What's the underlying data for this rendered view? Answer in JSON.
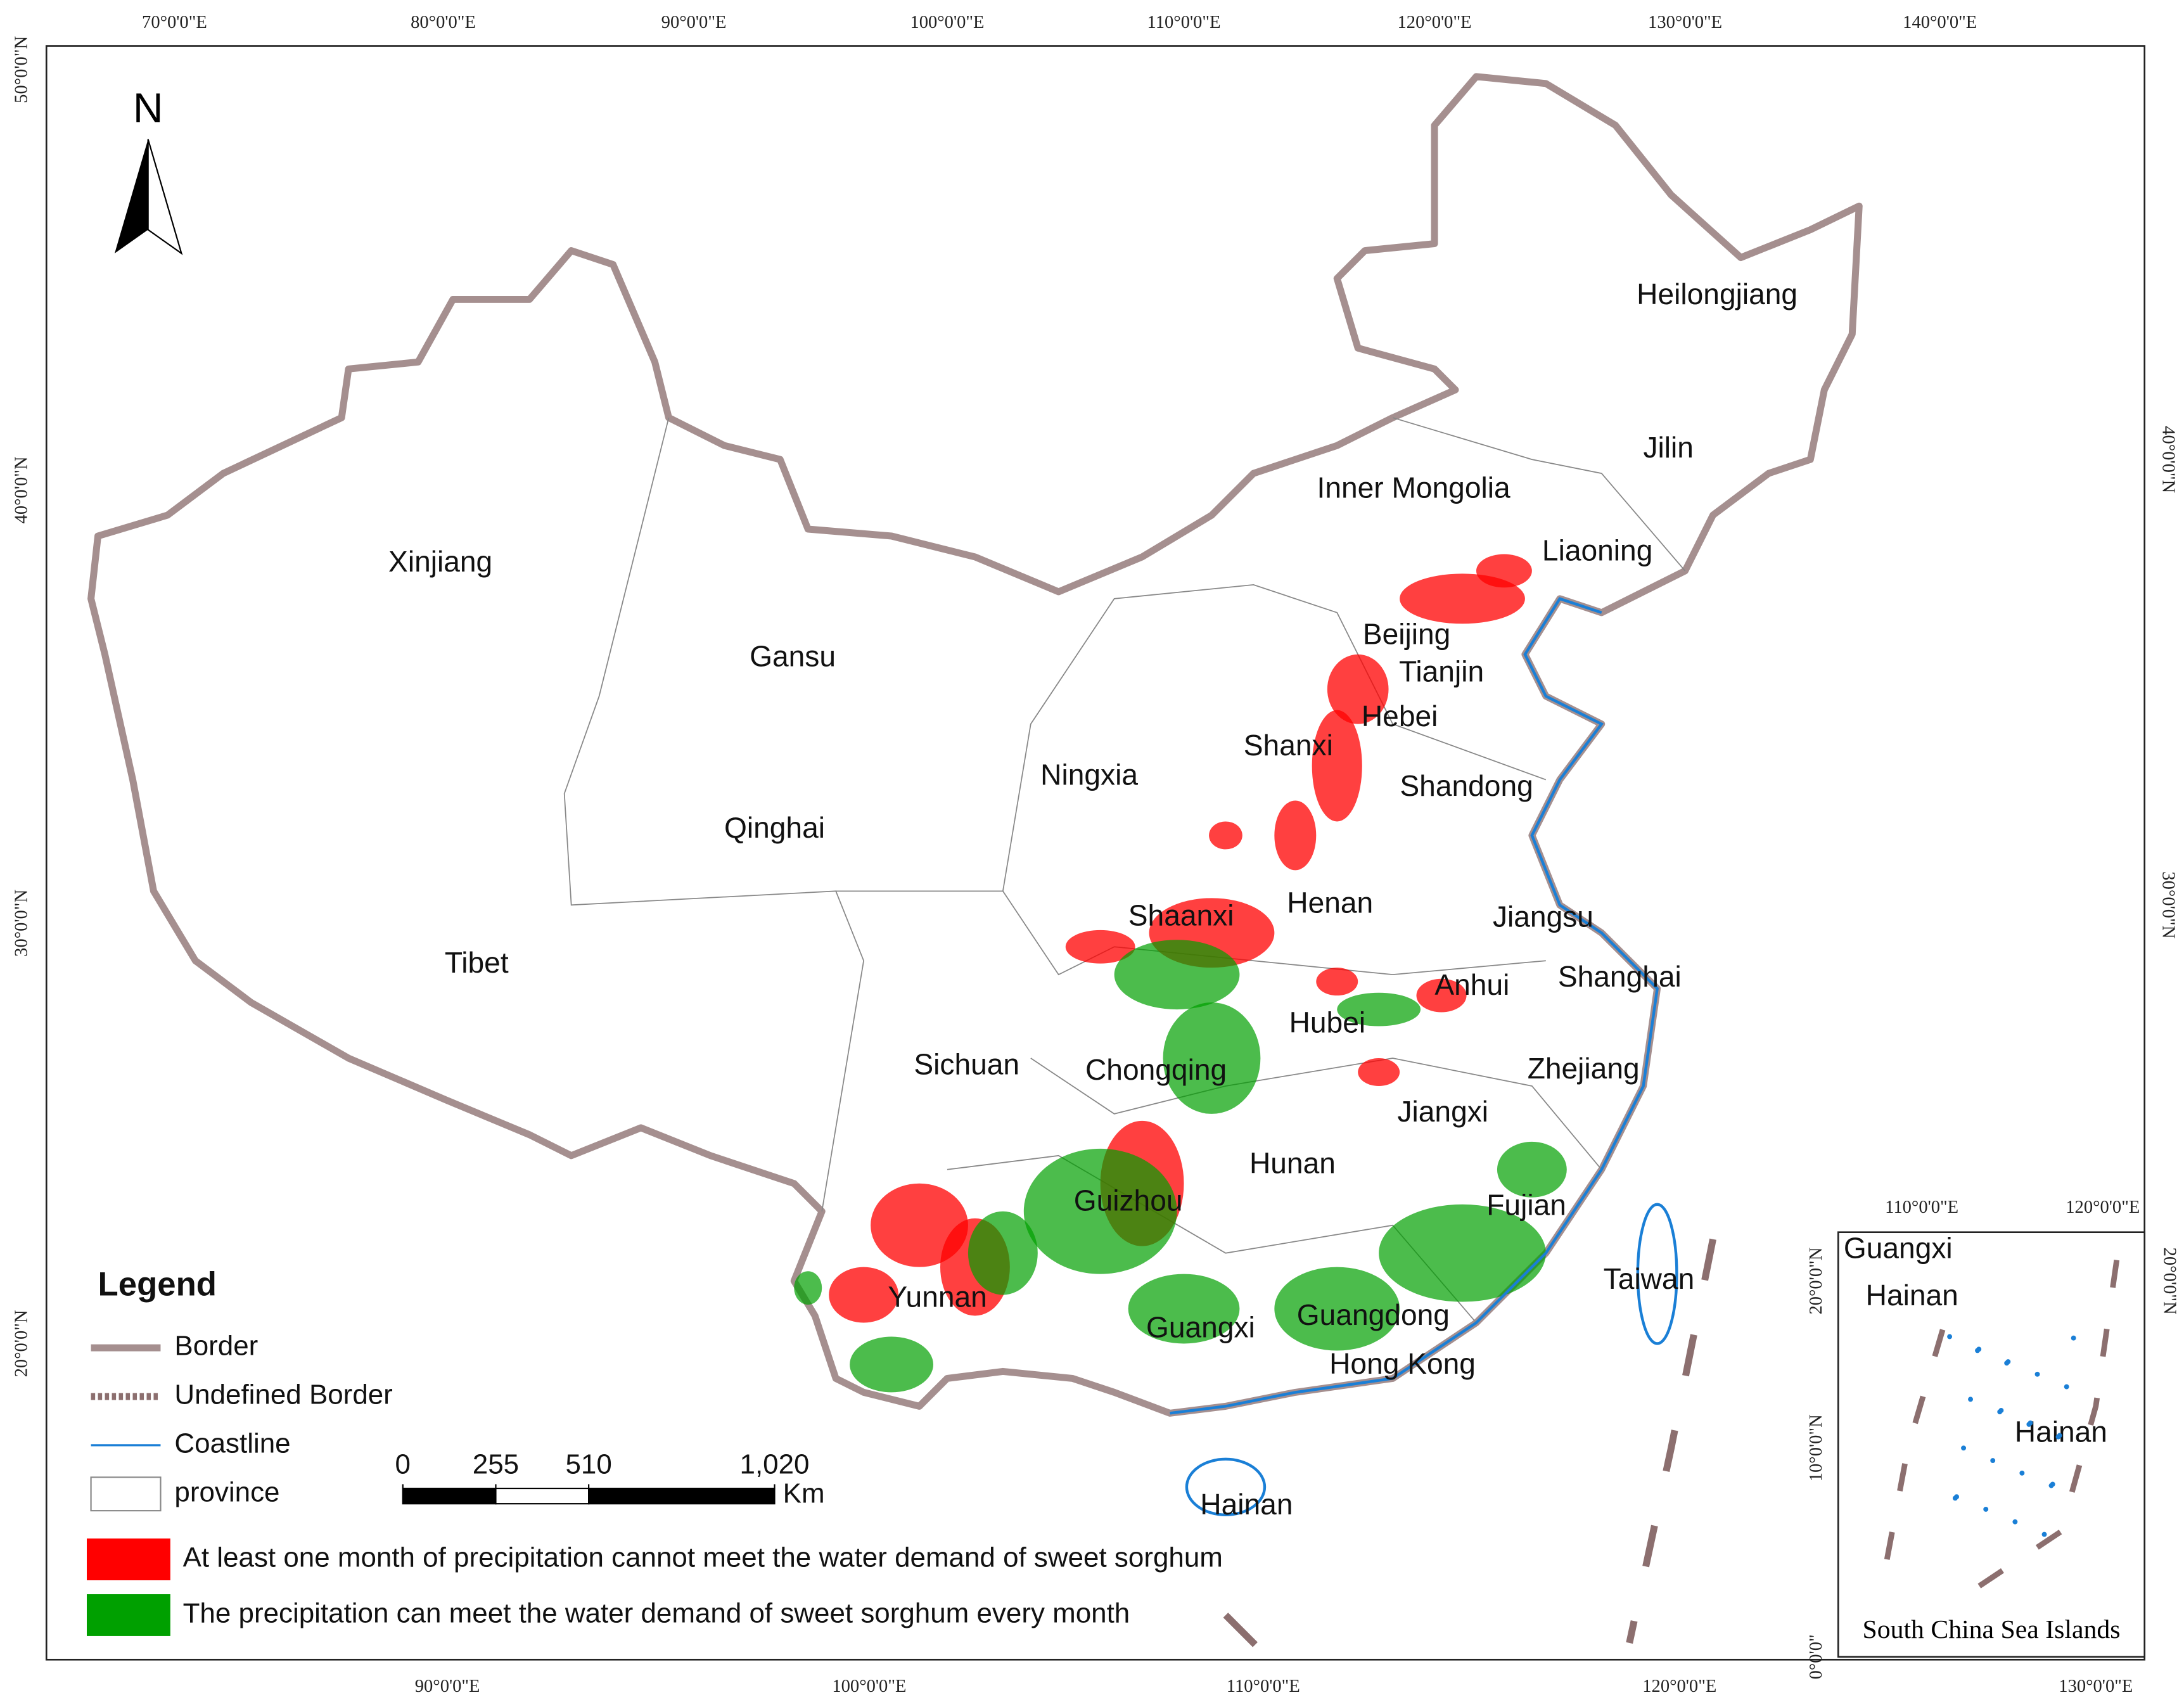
{
  "north_label": "N",
  "lon_labels_top": [
    "70°0'0\"E",
    "80°0'0\"E",
    "90°0'0\"E",
    "100°0'0\"E",
    "110°0'0\"E",
    "120°0'0\"E",
    "130°0'0\"E",
    "140°0'0\"E"
  ],
  "lon_labels_bottom": [
    "90°0'0\"E",
    "100°0'0\"E",
    "110°0'0\"E",
    "120°0'0\"E"
  ],
  "lat_labels_left": [
    "50°0'0\"N",
    "40°0'0\"N",
    "30°0'0\"N",
    "20°0'0\"N"
  ],
  "lat_labels_right": [
    "40°0'0\"N",
    "30°0'0\"N"
  ],
  "provinces": [
    "Heilongjiang",
    "Jilin",
    "Inner Mongolia",
    "Liaoning",
    "Xinjiang",
    "Gansu",
    "Beijing",
    "Tianjin",
    "Hebei",
    "Shanxi",
    "Ningxia",
    "Shandong",
    "Qinghai",
    "Henan",
    "Jiangsu",
    "Shaanxi",
    "Tibet",
    "Anhui",
    "Shanghai",
    "Hubei",
    "Sichuan",
    "Chongqing",
    "Zhejiang",
    "Jiangxi",
    "Hunan",
    "Guizhou",
    "Fujian",
    "Taiwan",
    "Yunnan",
    "Guangxi",
    "Guangdong",
    "Hong Kong",
    "Hainan"
  ],
  "legend": {
    "title": "Legend",
    "items": [
      {
        "label": "Border",
        "color": "#a58f8f"
      },
      {
        "label": "Undefined Border",
        "color": "#8c6f6f"
      },
      {
        "label": "Coastline",
        "color": "#1a7fd6"
      },
      {
        "label": "province",
        "color": "#888888"
      }
    ],
    "classes": [
      {
        "label": "At least one month of precipitation cannot meet the water demand of sweet sorghum",
        "color": "#ff0000"
      },
      {
        "label": "The precipitation can meet the water demand of sweet sorghum every month",
        "color": "#00a000"
      }
    ]
  },
  "scale_bar": {
    "ticks": [
      0,
      255,
      510,
      {
        "value": 1020,
        "label": "1,020"
      }
    ],
    "unit": "Km"
  },
  "inset": {
    "title": "South China Sea Islands",
    "labels": [
      "Guangxi",
      "Hainan",
      "Hainan"
    ],
    "lon_labels_top": [
      "110°0'0\"E",
      "120°0'0\"E"
    ],
    "lon_labels_bottom": [
      "130°0'0\"E"
    ],
    "lat_labels_left": [
      "20°0'0\"N",
      "10°0'0\"N",
      "0°0'0\""
    ],
    "lat_labels_right": [
      "20°0'0\"N"
    ]
  }
}
